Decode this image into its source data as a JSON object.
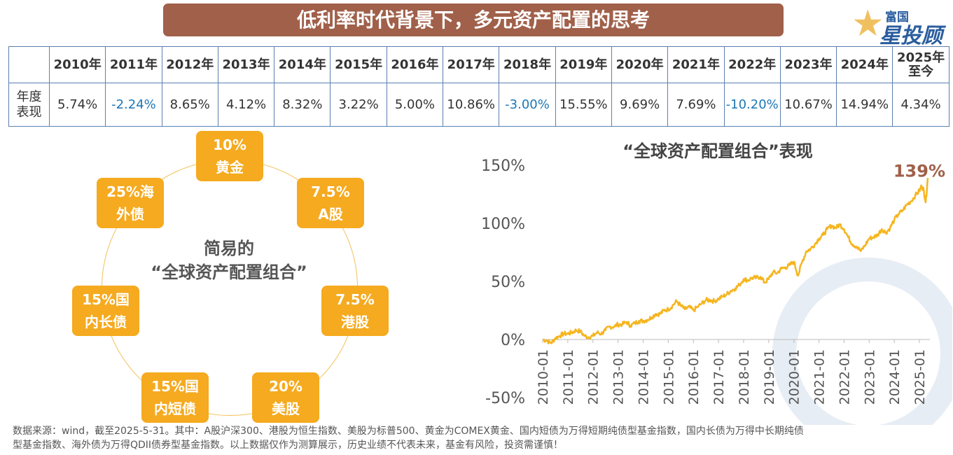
{
  "title": "低利率时代背景下，多元资产配置的思考",
  "logo": {
    "line1": "富国",
    "line2": "星投顾"
  },
  "table": {
    "years": [
      "2010年",
      "2011年",
      "2012年",
      "2013年",
      "2014年",
      "2015年",
      "2016年",
      "2017年",
      "2018年",
      "2019年",
      "2020年",
      "2021年",
      "2022年",
      "2023年",
      "2024年",
      "2025年至今"
    ],
    "row_label": "年度表现",
    "values": [
      "5.74%",
      "-2.24%",
      "8.65%",
      "4.12%",
      "8.32%",
      "3.22%",
      "5.00%",
      "10.86%",
      "-3.00%",
      "15.55%",
      "9.69%",
      "7.69%",
      "-10.20%",
      "10.67%",
      "14.94%",
      "4.34%"
    ]
  },
  "allocation": {
    "center_line1": "简易的",
    "center_line2": "“全球资产配置组合”",
    "items": [
      {
        "line1": "10%",
        "line2": "黄金"
      },
      {
        "line1": "7.5%",
        "line2": "A股"
      },
      {
        "line1": "7.5%",
        "line2": "港股"
      },
      {
        "line1": "20%",
        "line2": "美股"
      },
      {
        "line1": "15%国",
        "line2": "内短债"
      },
      {
        "line1": "15%国",
        "line2": "内长债"
      },
      {
        "line1": "25%海",
        "line2": "外债"
      }
    ]
  },
  "colors": {
    "title_bg": "#a0604a",
    "tile": "#f5aa1f",
    "line": "#f5b51f",
    "negative": "#1d77b6",
    "end_label": "#a0604a"
  },
  "chart_data": {
    "type": "line",
    "title": "“全球资产配置组合”表现",
    "xlabel": "",
    "ylabel": "",
    "x_ticks": [
      "2010-01",
      "2011-01",
      "2012-01",
      "2013-01",
      "2014-01",
      "2015-01",
      "2016-01",
      "2017-01",
      "2018-01",
      "2019-01",
      "2020-01",
      "2021-01",
      "2022-01",
      "2023-01",
      "2024-01",
      "2025-01"
    ],
    "y_ticks": [
      "150%",
      "100%",
      "50%",
      "0%",
      "-50%"
    ],
    "ylim": [
      -50,
      150
    ],
    "grid": false,
    "end_label": "139%",
    "series": [
      {
        "values": [
          [
            "2010-01",
            0
          ],
          [
            "2010-03",
            -1
          ],
          [
            "2010-05",
            -3
          ],
          [
            "2010-07",
            1
          ],
          [
            "2010-09",
            3
          ],
          [
            "2010-11",
            5
          ],
          [
            "2011-01",
            5
          ],
          [
            "2011-03",
            6
          ],
          [
            "2011-05",
            8
          ],
          [
            "2011-07",
            7
          ],
          [
            "2011-09",
            3
          ],
          [
            "2011-11",
            2
          ],
          [
            "2012-01",
            3
          ],
          [
            "2012-03",
            6
          ],
          [
            "2012-05",
            5
          ],
          [
            "2012-07",
            8
          ],
          [
            "2012-09",
            11
          ],
          [
            "2012-11",
            11
          ],
          [
            "2013-01",
            13
          ],
          [
            "2013-03",
            13
          ],
          [
            "2013-05",
            15
          ],
          [
            "2013-07",
            12
          ],
          [
            "2013-09",
            14
          ],
          [
            "2013-11",
            16
          ],
          [
            "2014-01",
            16
          ],
          [
            "2014-03",
            17
          ],
          [
            "2014-05",
            19
          ],
          [
            "2014-07",
            22
          ],
          [
            "2014-09",
            22
          ],
          [
            "2014-11",
            25
          ],
          [
            "2015-01",
            26
          ],
          [
            "2015-03",
            29
          ],
          [
            "2015-05",
            33
          ],
          [
            "2015-07",
            29
          ],
          [
            "2015-09",
            26
          ],
          [
            "2015-11",
            28
          ],
          [
            "2016-01",
            25
          ],
          [
            "2016-03",
            28
          ],
          [
            "2016-05",
            31
          ],
          [
            "2016-07",
            34
          ],
          [
            "2016-09",
            34
          ],
          [
            "2016-11",
            33
          ],
          [
            "2017-01",
            35
          ],
          [
            "2017-03",
            37
          ],
          [
            "2017-05",
            39
          ],
          [
            "2017-07",
            42
          ],
          [
            "2017-09",
            44
          ],
          [
            "2017-11",
            47
          ],
          [
            "2018-01",
            52
          ],
          [
            "2018-03",
            51
          ],
          [
            "2018-05",
            53
          ],
          [
            "2018-07",
            53
          ],
          [
            "2018-09",
            54
          ],
          [
            "2018-11",
            49
          ],
          [
            "2019-01",
            52
          ],
          [
            "2019-03",
            58
          ],
          [
            "2019-05",
            57
          ],
          [
            "2019-07",
            61
          ],
          [
            "2019-09",
            62
          ],
          [
            "2019-11",
            64
          ],
          [
            "2020-01",
            67
          ],
          [
            "2020-03",
            55
          ],
          [
            "2020-05",
            67
          ],
          [
            "2020-07",
            76
          ],
          [
            "2020-09",
            78
          ],
          [
            "2020-11",
            82
          ],
          [
            "2021-01",
            87
          ],
          [
            "2021-03",
            90
          ],
          [
            "2021-05",
            95
          ],
          [
            "2021-07",
            98
          ],
          [
            "2021-09",
            96
          ],
          [
            "2021-11",
            99
          ],
          [
            "2022-01",
            95
          ],
          [
            "2022-03",
            88
          ],
          [
            "2022-05",
            82
          ],
          [
            "2022-07",
            80
          ],
          [
            "2022-09",
            76
          ],
          [
            "2022-11",
            81
          ],
          [
            "2023-01",
            87
          ],
          [
            "2023-03",
            88
          ],
          [
            "2023-05",
            90
          ],
          [
            "2023-07",
            95
          ],
          [
            "2023-09",
            92
          ],
          [
            "2023-11",
            96
          ],
          [
            "2024-01",
            103
          ],
          [
            "2024-03",
            108
          ],
          [
            "2024-05",
            111
          ],
          [
            "2024-07",
            116
          ],
          [
            "2024-09",
            119
          ],
          [
            "2024-11",
            124
          ],
          [
            "2025-01",
            128
          ],
          [
            "2025-02",
            132
          ],
          [
            "2025-03",
            129
          ],
          [
            "2025-04",
            118
          ],
          [
            "2025-05",
            139
          ]
        ]
      }
    ]
  },
  "footnote": {
    "line1": "数据来源：wind，截至2025-5-31。其中：A股沪深300、港股为恒生指数、美股为标普500、黄金为COMEX黄金、国内短债为万得短期纯债型基金指数，国内长债为万得中长期纯债",
    "line2": "型基金指数、海外债为万得QDII债券型基金指数。以上数据仅作为测算展示，历史业绩不代表未来，基金有风险，投资需谨慎！"
  }
}
